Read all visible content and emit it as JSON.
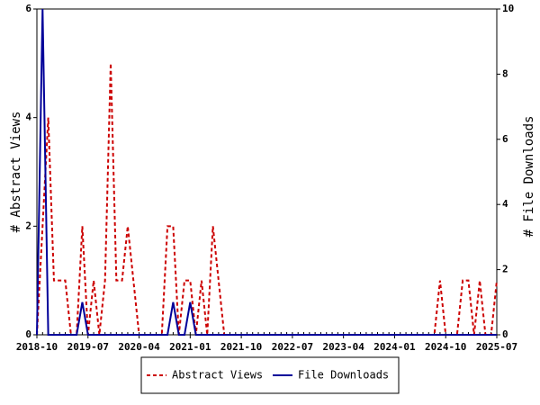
{
  "chart_data": {
    "type": "line",
    "y_label": "# Abstract Views",
    "y2_label": "# File Downloads",
    "x": [
      "2018-10",
      "2018-11",
      "2018-12",
      "2019-01",
      "2019-02",
      "2019-03",
      "2019-04",
      "2019-05",
      "2019-06",
      "2019-07",
      "2019-08",
      "2019-09",
      "2019-10",
      "2019-11",
      "2019-12",
      "2020-01",
      "2020-02",
      "2020-03",
      "2020-04",
      "2020-05",
      "2020-06",
      "2020-07",
      "2020-08",
      "2020-09",
      "2020-10",
      "2020-11",
      "2020-12",
      "2021-01",
      "2021-02",
      "2021-03",
      "2021-04",
      "2021-05",
      "2021-06",
      "2021-07",
      "2021-08",
      "2021-09",
      "2021-10",
      "2021-11",
      "2021-12",
      "2022-01",
      "2022-02",
      "2022-03",
      "2022-04",
      "2022-05",
      "2022-06",
      "2022-07",
      "2022-08",
      "2022-09",
      "2022-10",
      "2022-11",
      "2022-12",
      "2023-01",
      "2023-02",
      "2023-03",
      "2023-04",
      "2023-05",
      "2023-06",
      "2023-07",
      "2023-08",
      "2023-09",
      "2023-10",
      "2023-11",
      "2023-12",
      "2024-01",
      "2024-02",
      "2024-03",
      "2024-04",
      "2024-05",
      "2024-06",
      "2024-07",
      "2024-08",
      "2024-09",
      "2024-10",
      "2024-11",
      "2024-12",
      "2025-01",
      "2025-02",
      "2025-03",
      "2025-04",
      "2025-05",
      "2025-06",
      "2025-07"
    ],
    "xticks": [
      "2018-10",
      "2019-07",
      "2020-04",
      "2021-01",
      "2021-10",
      "2022-07",
      "2023-04",
      "2024-01",
      "2024-10",
      "2025-07"
    ],
    "series": [
      {
        "name": "Abstract Views",
        "color": "#cc0000",
        "dash": true,
        "values": [
          0,
          2,
          4,
          1,
          1,
          1,
          0,
          0,
          2,
          0,
          1,
          0,
          1,
          5,
          1,
          1,
          2,
          1,
          0,
          0,
          0,
          0,
          0,
          2,
          2,
          0,
          1,
          1,
          0,
          1,
          0,
          2,
          1,
          0,
          0,
          0,
          0,
          0,
          0,
          0,
          0,
          0,
          0,
          0,
          0,
          0,
          0,
          0,
          0,
          0,
          0,
          0,
          0,
          0,
          0,
          0,
          0,
          0,
          0,
          0,
          0,
          0,
          0,
          0,
          0,
          0,
          0,
          0,
          0,
          0,
          0,
          1,
          0,
          0,
          0,
          1,
          1,
          0,
          1,
          0,
          0,
          1
        ]
      },
      {
        "name": "File Downloads",
        "color": "#000099",
        "dash": false,
        "axis": "y2",
        "values": [
          0,
          10,
          0,
          0,
          0,
          0,
          0,
          0,
          1,
          0,
          0,
          0,
          0,
          0,
          0,
          0,
          0,
          0,
          0,
          0,
          0,
          0,
          0,
          0,
          1,
          0,
          0,
          1,
          0,
          0,
          0,
          0,
          0,
          0,
          0,
          0,
          0,
          0,
          0,
          0,
          0,
          0,
          0,
          0,
          0,
          0,
          0,
          0,
          0,
          0,
          0,
          0,
          0,
          0,
          0,
          0,
          0,
          0,
          0,
          0,
          0,
          0,
          0,
          0,
          0,
          0,
          0,
          0,
          0,
          0,
          0,
          0,
          0,
          0,
          0,
          0,
          0,
          0,
          0,
          0,
          0,
          0
        ]
      }
    ],
    "ylim": [
      0,
      6
    ],
    "yticks": [
      0,
      2,
      4,
      6
    ],
    "y2lim": [
      0,
      10
    ],
    "y2ticks": [
      0,
      2,
      4,
      6,
      8,
      10
    ],
    "legend": "bottom"
  }
}
